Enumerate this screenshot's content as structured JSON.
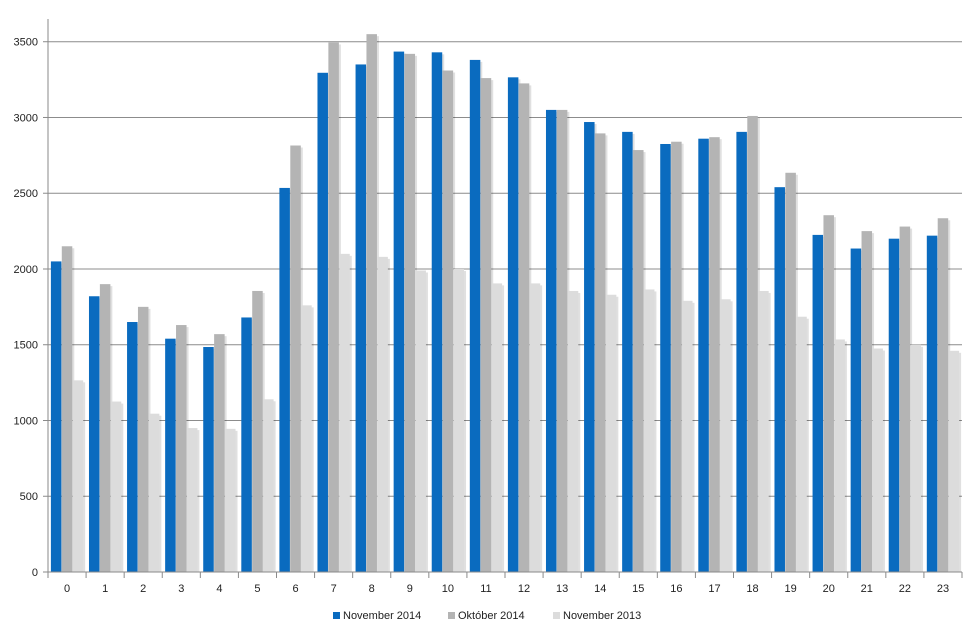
{
  "chart_data": {
    "type": "bar",
    "title": "",
    "xlabel": "",
    "ylabel": "",
    "ylim": [
      0,
      3500
    ],
    "yticks": [
      0,
      500,
      1000,
      1500,
      2000,
      2500,
      3000,
      3500
    ],
    "grid": true,
    "legend_position": "bottom",
    "categories": [
      "0",
      "1",
      "2",
      "3",
      "4",
      "5",
      "6",
      "7",
      "8",
      "9",
      "10",
      "11",
      "12",
      "13",
      "14",
      "15",
      "16",
      "17",
      "18",
      "19",
      "20",
      "21",
      "22",
      "23"
    ],
    "series": [
      {
        "name": "November 2014",
        "color": "#0a6bbf",
        "values": [
          2050,
          1820,
          1650,
          1540,
          1485,
          1680,
          2535,
          3295,
          3350,
          3435,
          3430,
          3380,
          3265,
          3050,
          2970,
          2905,
          2825,
          2860,
          2905,
          2540,
          2225,
          2135,
          2200,
          2220
        ]
      },
      {
        "name": "Október 2014",
        "color": "#b4b4b4",
        "values": [
          2150,
          1900,
          1750,
          1630,
          1570,
          1855,
          2815,
          3495,
          3550,
          3420,
          3310,
          3260,
          3225,
          3050,
          2895,
          2785,
          2840,
          2870,
          3010,
          2635,
          2355,
          2250,
          2280,
          2335
        ]
      },
      {
        "name": "November 2013",
        "color": "#dcdcdc",
        "values": [
          1265,
          1125,
          1045,
          950,
          945,
          1140,
          1760,
          2100,
          2080,
          1990,
          2000,
          1905,
          1905,
          1855,
          1830,
          1865,
          1790,
          1800,
          1855,
          1685,
          1535,
          1475,
          1500,
          1460
        ]
      }
    ]
  }
}
